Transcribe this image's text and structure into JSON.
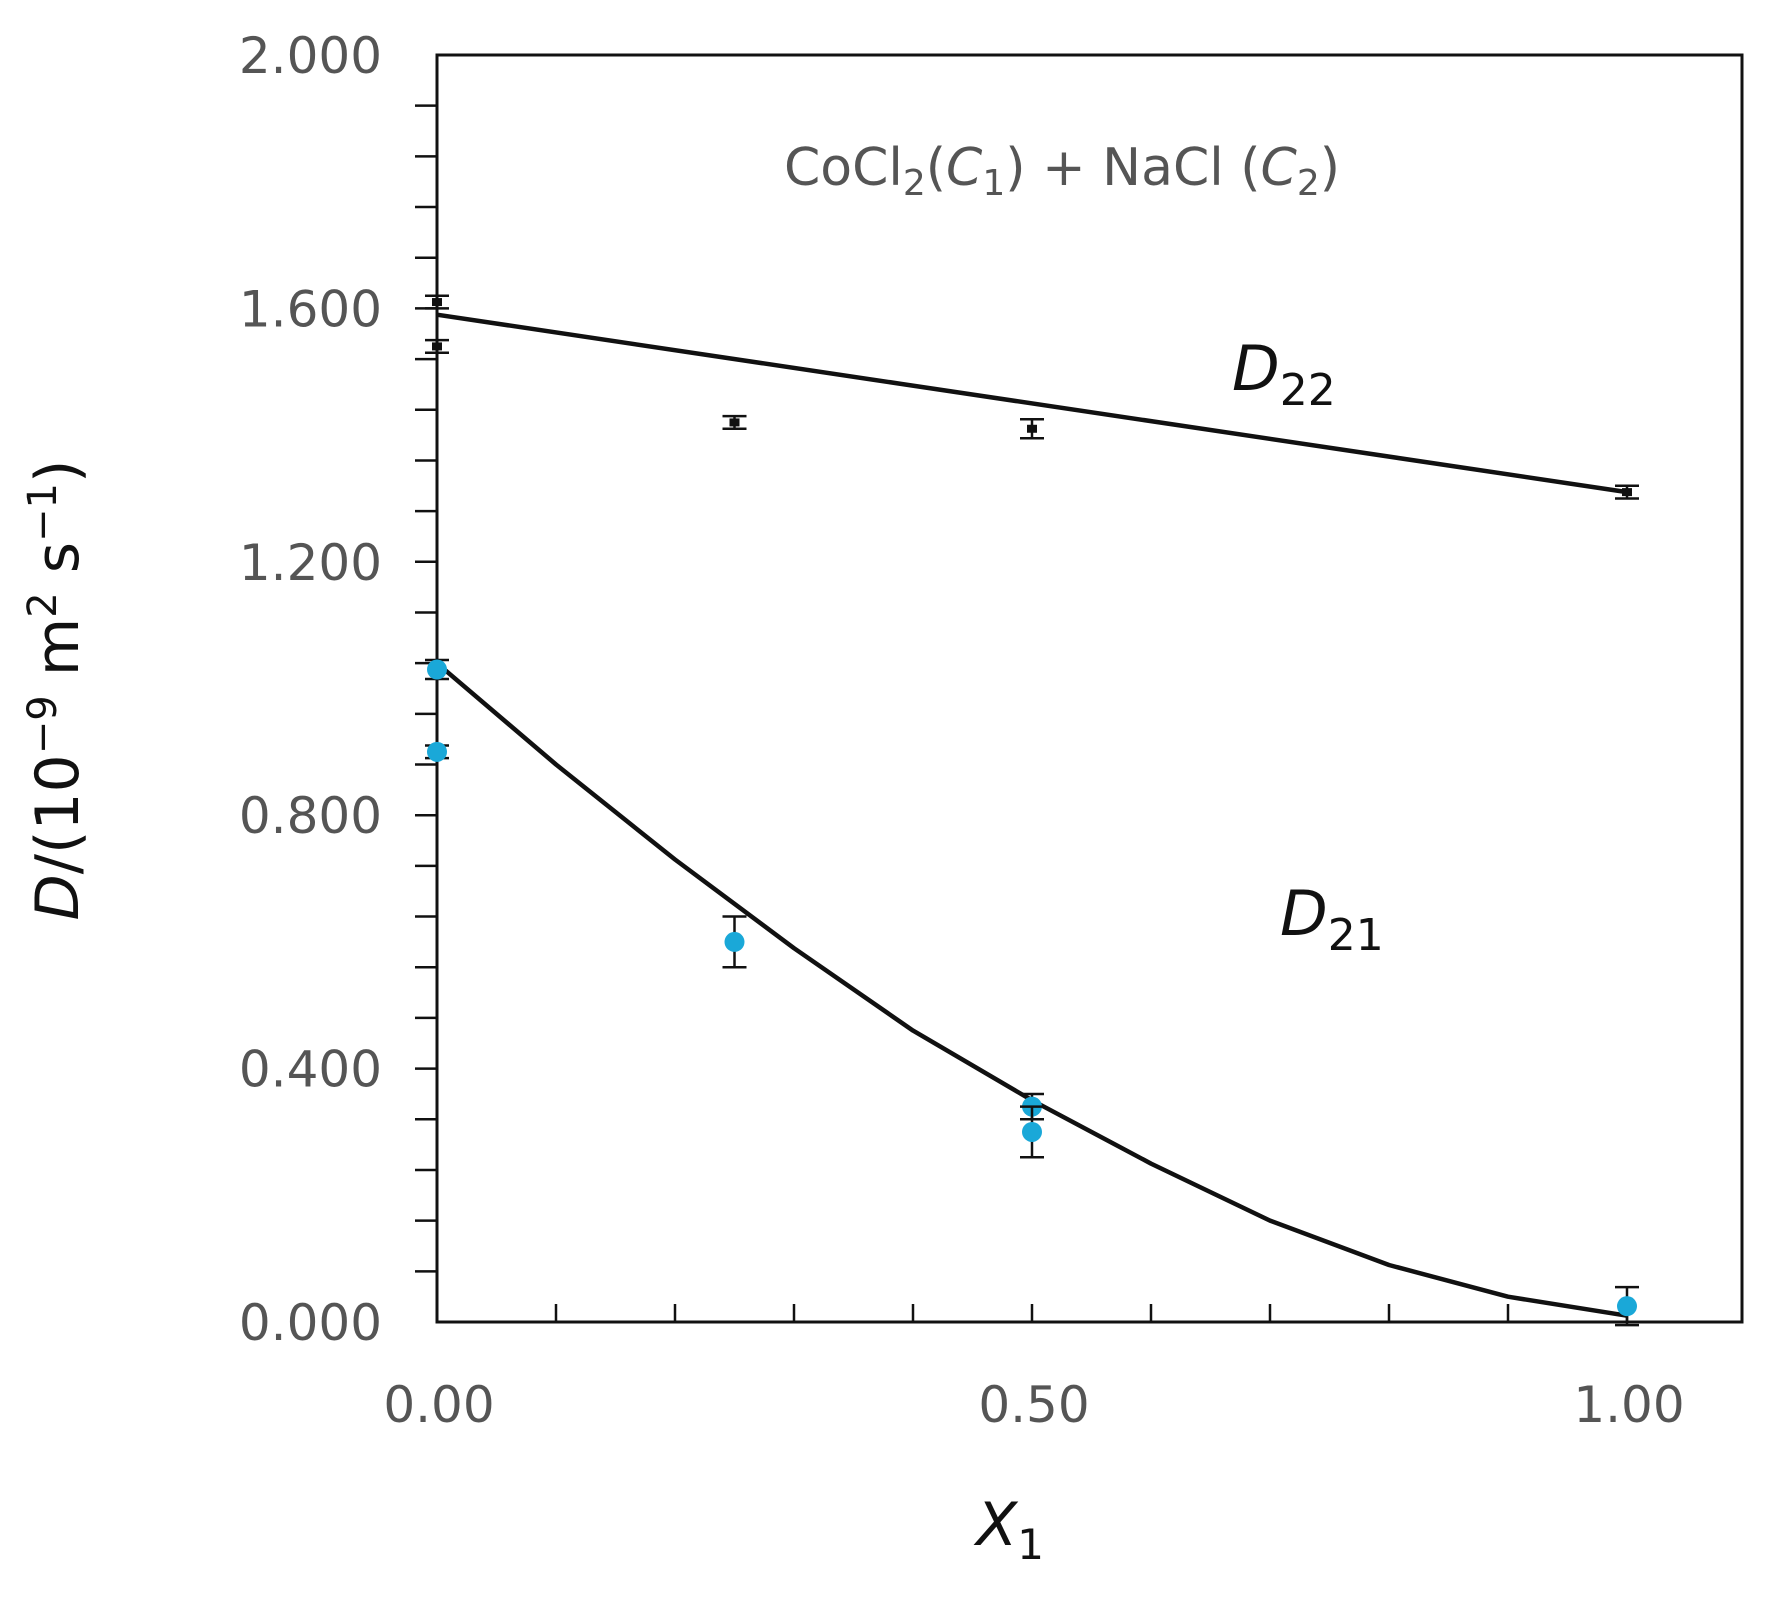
{
  "chart_data": {
    "type": "scatter",
    "title_parts": {
      "a": "CoCl",
      "a_sub": "2",
      "b": "(",
      "c": "C",
      "c_sub": "1",
      "d": ") + NaCl (",
      "e": "C",
      "e_sub": "2",
      "f": ")"
    },
    "xlabel": {
      "main": "X",
      "sub": "1"
    },
    "ylabel": {
      "a": "D",
      "b": "/(10",
      "b_sup": "−9",
      "c": " m",
      "c_sup": "2",
      "d": " s",
      "d_sup": "−1",
      "e": ")"
    },
    "xlim": [
      0,
      1.1
    ],
    "ylim": [
      0,
      2.0
    ],
    "x_tick_labels": [
      "0.00",
      "0.50",
      "1.00"
    ],
    "x_tick_values": [
      0,
      0.5,
      1.0
    ],
    "x_minor_step": 0.1,
    "y_tick_labels": [
      "0.000",
      "0.400",
      "0.800",
      "1.200",
      "1.600",
      "2.000"
    ],
    "y_tick_values": [
      0,
      0.4,
      0.8,
      1.2,
      1.6,
      2.0
    ],
    "y_minor_step": 0.08,
    "grid": false,
    "series": [
      {
        "name": "D22",
        "label_main": "D",
        "label_sub": "22",
        "color": "#111111",
        "marker_color": "#111111",
        "points": [
          {
            "x": 0.0,
            "y": 1.61,
            "err": 0.01
          },
          {
            "x": 0.0,
            "y": 1.54,
            "err": 0.01
          },
          {
            "x": 0.25,
            "y": 1.42,
            "err": 0.01
          },
          {
            "x": 0.5,
            "y": 1.41,
            "err": 0.015
          },
          {
            "x": 1.0,
            "y": 1.31,
            "err": 0.01
          }
        ],
        "fit": [
          [
            0.0,
            1.59
          ],
          [
            1.0,
            1.31
          ]
        ]
      },
      {
        "name": "D21",
        "label_main": "D",
        "label_sub": "21",
        "color": "#111111",
        "marker_color": "#1aa8d8",
        "points": [
          {
            "x": 0.0,
            "y": 1.03,
            "err": 0.015
          },
          {
            "x": 0.0,
            "y": 0.9,
            "err": 0.01
          },
          {
            "x": 0.25,
            "y": 0.6,
            "err": 0.04
          },
          {
            "x": 0.5,
            "y": 0.34,
            "err": 0.02
          },
          {
            "x": 0.5,
            "y": 0.3,
            "err": 0.04
          },
          {
            "x": 1.0,
            "y": 0.025,
            "err": 0.03
          }
        ],
        "fit": [
          [
            0.0,
            1.04
          ],
          [
            0.1,
            0.88
          ],
          [
            0.2,
            0.73
          ],
          [
            0.3,
            0.59
          ],
          [
            0.4,
            0.46
          ],
          [
            0.5,
            0.35
          ],
          [
            0.6,
            0.25
          ],
          [
            0.7,
            0.16
          ],
          [
            0.8,
            0.09
          ],
          [
            0.9,
            0.04
          ],
          [
            1.0,
            0.01
          ]
        ]
      }
    ]
  }
}
